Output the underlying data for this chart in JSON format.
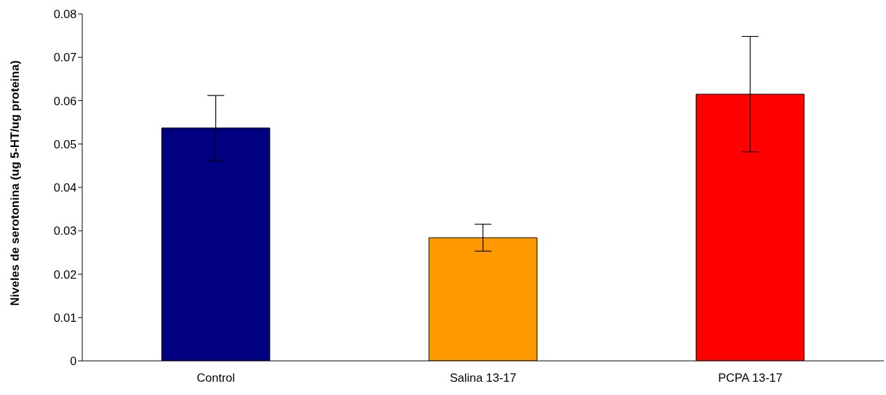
{
  "chart_data": {
    "type": "bar",
    "ylabel": "Niveles de serotonina (ug 5-HT/ug proteina)",
    "categories": [
      "Control",
      "Salina 13-17",
      "PCPA 13-17"
    ],
    "values": [
      0.0537,
      0.0284,
      0.0615
    ],
    "colors": [
      "#000080",
      "#ff9900",
      "#ff0000"
    ],
    "errors": [
      0.0075,
      0.0031,
      0.0133
    ],
    "ylim": [
      0,
      0.08
    ],
    "yticks": [
      0,
      0.01,
      0.02,
      0.03,
      0.04,
      0.05,
      0.06,
      0.07,
      0.08
    ],
    "grid": false,
    "legend": false
  }
}
